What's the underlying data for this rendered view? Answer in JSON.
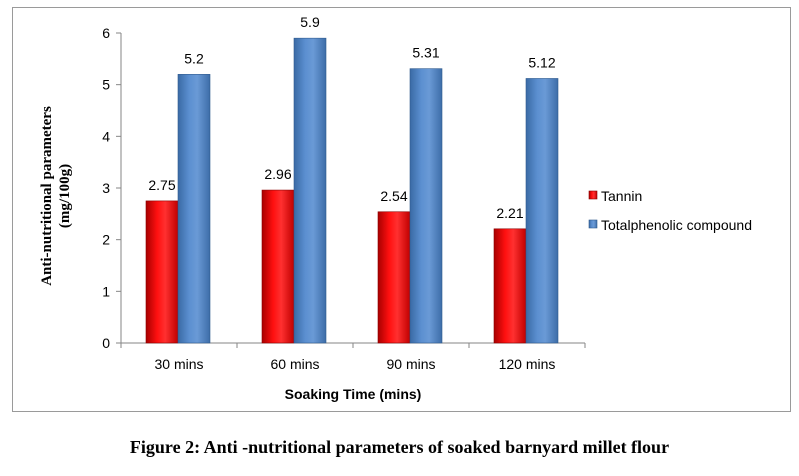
{
  "caption": "Figure 2: Anti -nutritional parameters of soaked barnyard millet flour",
  "chart_data": {
    "type": "bar",
    "categories": [
      "30 mins",
      "60 mins",
      "90 mins",
      "120 mins"
    ],
    "series": [
      {
        "name": "Tannin",
        "values": [
          2.75,
          2.96,
          2.54,
          2.21
        ],
        "labels": [
          "2.75",
          "2.96",
          "2.54",
          "2.21"
        ],
        "color": "#ff0000"
      },
      {
        "name": "Totalphenolic compound",
        "values": [
          5.2,
          5.9,
          5.31,
          5.12
        ],
        "labels": [
          "5.2",
          "5.9",
          "5.31",
          "5.12"
        ],
        "color": "#4f81bd"
      }
    ],
    "xlabel": "Soaking Time (mins)",
    "ylabel_lines": [
      "Anti-nutritional parameters",
      "(mg/100g)"
    ],
    "ylim": [
      0,
      6
    ],
    "yticks": [
      0,
      1,
      2,
      3,
      4,
      5,
      6
    ],
    "grid": false,
    "legend_position": "right"
  }
}
